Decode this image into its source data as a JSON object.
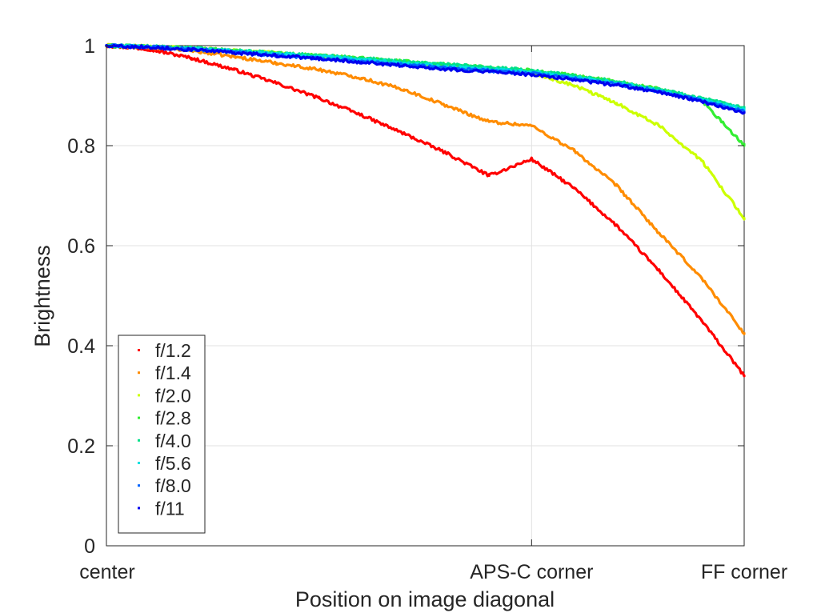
{
  "chart_data": {
    "type": "scatter",
    "title": "",
    "xlabel": "Position on image diagonal",
    "ylabel": "Brightness",
    "xlim": [
      0,
      1.5
    ],
    "ylim": [
      0,
      1
    ],
    "x_ticks": [
      {
        "value": 0,
        "label": "center"
      },
      {
        "value": 1,
        "label": "APS-C corner"
      },
      {
        "value": 1.5,
        "label": "FF corner"
      }
    ],
    "y_ticks": [
      {
        "value": 0,
        "label": "0"
      },
      {
        "value": 0.2,
        "label": "0.2"
      },
      {
        "value": 0.4,
        "label": "0.4"
      },
      {
        "value": 0.6,
        "label": "0.6"
      },
      {
        "value": 0.8,
        "label": "0.8"
      },
      {
        "value": 1,
        "label": "1"
      }
    ],
    "grid": true,
    "legend_position": "bottom-left",
    "x": [
      0,
      0.1,
      0.2,
      0.3,
      0.4,
      0.5,
      0.6,
      0.7,
      0.8,
      0.9,
      1.0,
      1.1,
      1.2,
      1.3,
      1.4,
      1.5
    ],
    "series": [
      {
        "name": "f/1.2",
        "color": "#ff0000",
        "values": [
          1.0,
          0.993,
          0.975,
          0.952,
          0.925,
          0.895,
          0.861,
          0.824,
          0.785,
          0.74,
          0.773,
          0.715,
          0.64,
          0.55,
          0.45,
          0.34
        ]
      },
      {
        "name": "f/1.4",
        "color": "#ff8c00",
        "values": [
          1.0,
          0.997,
          0.99,
          0.978,
          0.965,
          0.952,
          0.935,
          0.912,
          0.88,
          0.848,
          0.84,
          0.79,
          0.72,
          0.625,
          0.535,
          0.425
        ]
      },
      {
        "name": "f/2.0",
        "color": "#ccff00",
        "values": [
          1.0,
          0.998,
          0.995,
          0.99,
          0.985,
          0.978,
          0.972,
          0.965,
          0.958,
          0.952,
          0.945,
          0.92,
          0.885,
          0.84,
          0.77,
          0.655
        ]
      },
      {
        "name": "f/2.8",
        "color": "#33ee33",
        "values": [
          1.0,
          0.998,
          0.995,
          0.99,
          0.985,
          0.98,
          0.975,
          0.968,
          0.962,
          0.957,
          0.95,
          0.94,
          0.928,
          0.913,
          0.89,
          0.8
        ]
      },
      {
        "name": "f/4.0",
        "color": "#00e08a",
        "values": [
          1.0,
          0.998,
          0.995,
          0.99,
          0.985,
          0.98,
          0.975,
          0.968,
          0.962,
          0.957,
          0.95,
          0.94,
          0.928,
          0.913,
          0.895,
          0.875
        ]
      },
      {
        "name": "f/5.6",
        "color": "#00e0e0",
        "values": [
          1.0,
          0.998,
          0.994,
          0.989,
          0.984,
          0.978,
          0.972,
          0.965,
          0.958,
          0.952,
          0.947,
          0.937,
          0.925,
          0.91,
          0.892,
          0.872
        ]
      },
      {
        "name": "f/8.0",
        "color": "#0066ff",
        "values": [
          1.0,
          0.997,
          0.993,
          0.987,
          0.981,
          0.975,
          0.968,
          0.962,
          0.955,
          0.95,
          0.944,
          0.934,
          0.923,
          0.909,
          0.89,
          0.868
        ]
      },
      {
        "name": "f/11",
        "color": "#0000ee",
        "values": [
          1.0,
          0.997,
          0.992,
          0.986,
          0.98,
          0.974,
          0.967,
          0.96,
          0.953,
          0.948,
          0.942,
          0.932,
          0.921,
          0.907,
          0.888,
          0.866
        ]
      }
    ]
  }
}
